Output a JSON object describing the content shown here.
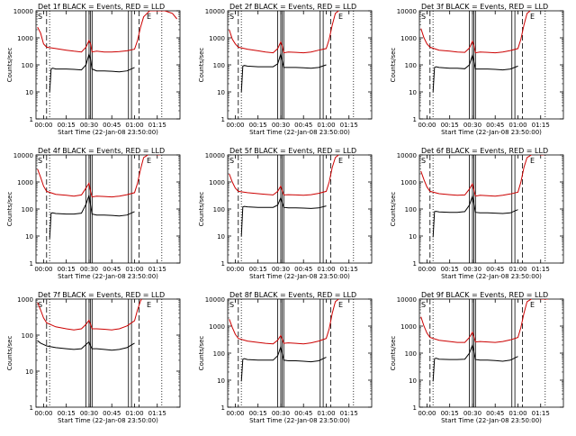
{
  "chart_data": [
    {
      "type": "line",
      "title": "Det 1f BLACK = Events, RED = LLD",
      "xlabel": "Start Time (22-Jan-08 23:50:00)",
      "ylabel": "Counts/sec",
      "yscale": "log",
      "ylim": [
        1,
        10000
      ],
      "xlim_minutes": [
        -5,
        90
      ],
      "x_tick_labels": [
        "00:00",
        "00:15",
        "00:30",
        "00:45",
        "01:00",
        "01:15"
      ],
      "y_tick_labels": [
        "1",
        "10",
        "100",
        "1000",
        "10000"
      ],
      "panel_markers": [
        "S",
        "E"
      ],
      "series": [
        {
          "color": "#cc0000",
          "x": [
            -4,
            -2,
            0,
            2,
            8,
            15,
            20,
            25,
            28,
            30,
            31,
            32,
            35,
            40,
            45,
            50,
            55,
            60,
            62,
            64,
            66,
            70,
            76,
            80,
            85,
            88
          ],
          "y": [
            2500,
            1500,
            600,
            450,
            400,
            350,
            320,
            300,
            450,
            800,
            600,
            300,
            320,
            300,
            300,
            310,
            330,
            380,
            800,
            2500,
            6000,
            10000,
            10000,
            10000,
            8000,
            5000
          ]
        },
        {
          "color": "#000000",
          "x": [
            4,
            5,
            6,
            8,
            15,
            20,
            25,
            28,
            30,
            31,
            32,
            35,
            40,
            45,
            50,
            55,
            60
          ],
          "y": [
            10,
            70,
            75,
            70,
            70,
            68,
            65,
            100,
            250,
            160,
            70,
            60,
            60,
            58,
            55,
            60,
            80
          ]
        }
      ]
    },
    {
      "type": "line",
      "title": "Det 2f BLACK = Events, RED = LLD",
      "xlabel": "Start Time (22-Jan-08 23:50:00)",
      "ylabel": "Counts/sec",
      "yscale": "log",
      "ylim": [
        1,
        10000
      ],
      "xlim_minutes": [
        -5,
        90
      ],
      "x_tick_labels": [
        "00:00",
        "00:15",
        "00:30",
        "00:45",
        "01:00",
        "01:15"
      ],
      "y_tick_labels": [
        "1",
        "10",
        "100",
        "1000",
        "10000"
      ],
      "panel_markers": [
        "S",
        "E"
      ],
      "series": [
        {
          "color": "#cc0000",
          "x": [
            -4,
            -2,
            0,
            2,
            8,
            15,
            20,
            25,
            28,
            30,
            31,
            32,
            35,
            40,
            45,
            50,
            55,
            60,
            62,
            64,
            66,
            70
          ],
          "y": [
            2000,
            900,
            600,
            450,
            380,
            330,
            300,
            280,
            400,
            700,
            500,
            280,
            300,
            290,
            280,
            300,
            350,
            400,
            900,
            3000,
            8000,
            12000
          ]
        },
        {
          "color": "#000000",
          "x": [
            4,
            5,
            6,
            8,
            15,
            20,
            25,
            28,
            30,
            31,
            32,
            35,
            40,
            45,
            50,
            55,
            60
          ],
          "y": [
            10,
            90,
            95,
            90,
            85,
            85,
            85,
            110,
            250,
            140,
            80,
            80,
            80,
            78,
            75,
            80,
            100
          ]
        }
      ]
    },
    {
      "type": "line",
      "title": "Det 3f BLACK = Events, RED = LLD",
      "xlabel": "Start Time (22-Jan-08 23:50:00)",
      "ylabel": "Counts/sec",
      "yscale": "log",
      "ylim": [
        1,
        10000
      ],
      "xlim_minutes": [
        -5,
        90
      ],
      "x_tick_labels": [
        "00:00",
        "00:15",
        "00:30",
        "00:45",
        "01:00",
        "01:15"
      ],
      "y_tick_labels": [
        "1",
        "10",
        "100",
        "1000",
        "10000"
      ],
      "panel_markers": [
        "S",
        "E"
      ],
      "series": [
        {
          "color": "#cc0000",
          "x": [
            -4,
            -2,
            0,
            2,
            8,
            15,
            20,
            25,
            28,
            30,
            31,
            32,
            35,
            40,
            45,
            50,
            55,
            60,
            62,
            64,
            66,
            70
          ],
          "y": [
            2200,
            1000,
            600,
            450,
            350,
            320,
            300,
            290,
            420,
            750,
            520,
            280,
            300,
            290,
            280,
            300,
            340,
            400,
            900,
            3000,
            8000,
            12000
          ]
        },
        {
          "color": "#000000",
          "x": [
            4,
            5,
            6,
            8,
            15,
            20,
            25,
            28,
            30,
            31,
            32,
            35,
            40,
            45,
            50,
            55,
            60
          ],
          "y": [
            10,
            80,
            85,
            80,
            75,
            75,
            72,
            100,
            230,
            130,
            70,
            70,
            70,
            68,
            65,
            70,
            90
          ]
        }
      ]
    },
    {
      "type": "line",
      "title": "Det 4f BLACK = Events, RED = LLD",
      "xlabel": "Start Time (22-Jan-08 23:50:00)",
      "ylabel": "Counts/sec",
      "yscale": "log",
      "ylim": [
        1,
        10000
      ],
      "xlim_minutes": [
        -5,
        90
      ],
      "x_tick_labels": [
        "00:00",
        "00:15",
        "00:30",
        "00:45",
        "01:00",
        "01:15"
      ],
      "y_tick_labels": [
        "1",
        "10",
        "100",
        "1000",
        "10000"
      ],
      "panel_markers": [
        "S",
        "E"
      ],
      "series": [
        {
          "color": "#cc0000",
          "x": [
            -4,
            -2,
            0,
            2,
            8,
            15,
            20,
            25,
            28,
            30,
            31,
            32,
            35,
            40,
            45,
            50,
            55,
            60,
            62,
            64,
            66,
            70,
            76,
            80
          ],
          "y": [
            3000,
            1500,
            700,
            450,
            350,
            320,
            300,
            330,
            600,
            900,
            450,
            280,
            300,
            290,
            280,
            300,
            340,
            400,
            900,
            3000,
            8000,
            11000,
            10000,
            11000
          ]
        },
        {
          "color": "#000000",
          "x": [
            4,
            5,
            6,
            8,
            15,
            20,
            25,
            28,
            30,
            31,
            32,
            35,
            40,
            45,
            50,
            55,
            60
          ],
          "y": [
            8,
            70,
            72,
            68,
            65,
            65,
            70,
            150,
            320,
            140,
            65,
            60,
            60,
            58,
            55,
            60,
            80
          ]
        }
      ]
    },
    {
      "type": "line",
      "title": "Det 5f BLACK = Events, RED = LLD",
      "xlabel": "Start Time (22-Jan-08 23:50:00)",
      "ylabel": "Counts/sec",
      "yscale": "log",
      "ylim": [
        1,
        10000
      ],
      "xlim_minutes": [
        -5,
        90
      ],
      "x_tick_labels": [
        "00:00",
        "00:15",
        "00:30",
        "00:45",
        "01:00",
        "01:15"
      ],
      "y_tick_labels": [
        "1",
        "10",
        "100",
        "1000",
        "10000"
      ],
      "panel_markers": [
        "S",
        "E"
      ],
      "series": [
        {
          "color": "#cc0000",
          "x": [
            -4,
            -2,
            0,
            2,
            8,
            15,
            20,
            25,
            28,
            30,
            31,
            32,
            35,
            40,
            45,
            50,
            55,
            60,
            62,
            64,
            66,
            70
          ],
          "y": [
            2000,
            1000,
            600,
            450,
            400,
            370,
            350,
            330,
            450,
            700,
            480,
            330,
            340,
            330,
            320,
            340,
            380,
            450,
            1000,
            3500,
            8000,
            12000
          ]
        },
        {
          "color": "#000000",
          "x": [
            4,
            5,
            6,
            8,
            15,
            20,
            25,
            28,
            30,
            31,
            32,
            35,
            40,
            45,
            50,
            55,
            60
          ],
          "y": [
            10,
            120,
            125,
            120,
            115,
            115,
            115,
            140,
            260,
            170,
            115,
            110,
            110,
            108,
            105,
            110,
            130
          ]
        }
      ]
    },
    {
      "type": "line",
      "title": "Det 6f BLACK = Events, RED = LLD",
      "xlabel": "Start Time (22-Jan-08 23:50:00)",
      "ylabel": "Counts/sec",
      "yscale": "log",
      "ylim": [
        1,
        10000
      ],
      "xlim_minutes": [
        -5,
        90
      ],
      "x_tick_labels": [
        "00:00",
        "00:15",
        "00:30",
        "00:45",
        "01:00",
        "01:15"
      ],
      "y_tick_labels": [
        "1",
        "10",
        "100",
        "1000",
        "10000"
      ],
      "panel_markers": [
        "S",
        "E"
      ],
      "series": [
        {
          "color": "#cc0000",
          "x": [
            -4,
            -2,
            0,
            2,
            8,
            15,
            20,
            25,
            28,
            30,
            31,
            32,
            35,
            40,
            45,
            50,
            55,
            60,
            62,
            64,
            66,
            70,
            76,
            80
          ],
          "y": [
            2500,
            1200,
            650,
            450,
            370,
            340,
            320,
            330,
            550,
            850,
            500,
            300,
            320,
            310,
            300,
            320,
            360,
            420,
            1000,
            3500,
            8000,
            11000,
            10000,
            11000
          ]
        },
        {
          "color": "#000000",
          "x": [
            4,
            5,
            6,
            8,
            15,
            20,
            25,
            28,
            30,
            31,
            32,
            35,
            40,
            45,
            50,
            55,
            60
          ],
          "y": [
            9,
            80,
            82,
            78,
            75,
            75,
            80,
            140,
            300,
            150,
            75,
            72,
            72,
            70,
            68,
            72,
            95
          ]
        }
      ]
    },
    {
      "type": "line",
      "title": "Det 7f BLACK = Events, RED = LLD",
      "xlabel": "Start Time (22-Jan-08 23:50:00)",
      "ylabel": "Counts/sec",
      "yscale": "log",
      "ylim": [
        1,
        1000
      ],
      "xlim_minutes": [
        -5,
        90
      ],
      "x_tick_labels": [
        "00:00",
        "00:15",
        "00:30",
        "00:45",
        "01:00",
        "01:15"
      ],
      "y_tick_labels": [
        "1",
        "10",
        "100",
        "1000"
      ],
      "panel_markers": [
        "S",
        "E"
      ],
      "series": [
        {
          "color": "#cc0000",
          "x": [
            -4,
            -2,
            0,
            2,
            8,
            15,
            20,
            25,
            28,
            30,
            31,
            32,
            35,
            40,
            45,
            50,
            55,
            60,
            62,
            64,
            66
          ],
          "y": [
            800,
            500,
            300,
            220,
            170,
            150,
            140,
            150,
            200,
            260,
            200,
            150,
            150,
            145,
            140,
            150,
            180,
            250,
            500,
            900,
            1200
          ]
        },
        {
          "color": "#000000",
          "x": [
            -4,
            -2,
            0,
            2,
            8,
            15,
            20,
            25,
            28,
            30,
            31,
            32,
            35,
            40,
            45,
            50,
            55,
            60
          ],
          "y": [
            70,
            60,
            55,
            50,
            45,
            42,
            40,
            42,
            55,
            65,
            50,
            42,
            42,
            40,
            38,
            40,
            45,
            60
          ]
        }
      ]
    },
    {
      "type": "line",
      "title": "Det 8f BLACK = Events, RED = LLD",
      "xlabel": "Start Time (22-Jan-08 23:50:00)",
      "ylabel": "Counts/sec",
      "yscale": "log",
      "ylim": [
        1,
        10000
      ],
      "xlim_minutes": [
        -5,
        90
      ],
      "x_tick_labels": [
        "00:00",
        "00:15",
        "00:30",
        "00:45",
        "01:00",
        "01:15"
      ],
      "y_tick_labels": [
        "1",
        "10",
        "100",
        "1000",
        "10000"
      ],
      "panel_markers": [
        "S",
        "E"
      ],
      "series": [
        {
          "color": "#cc0000",
          "x": [
            -4,
            -2,
            0,
            2,
            8,
            15,
            20,
            25,
            28,
            30,
            31,
            32,
            35,
            40,
            45,
            50,
            55,
            60,
            62,
            64,
            66,
            70
          ],
          "y": [
            1800,
            900,
            500,
            350,
            280,
            250,
            230,
            220,
            300,
            450,
            330,
            230,
            240,
            230,
            220,
            240,
            280,
            350,
            800,
            3000,
            8000,
            12000
          ]
        },
        {
          "color": "#000000",
          "x": [
            4,
            5,
            6,
            8,
            15,
            20,
            25,
            28,
            30,
            31,
            32,
            35,
            40,
            45,
            50,
            55,
            60
          ],
          "y": [
            9,
            60,
            62,
            58,
            55,
            55,
            55,
            80,
            170,
            95,
            55,
            52,
            52,
            50,
            48,
            52,
            70
          ]
        }
      ]
    },
    {
      "type": "line",
      "title": "Det 9f BLACK = Events, RED = LLD",
      "xlabel": "Start Time (22-Jan-08 23:50:00)",
      "ylabel": "Counts/sec",
      "yscale": "log",
      "ylim": [
        1,
        10000
      ],
      "xlim_minutes": [
        -5,
        90
      ],
      "x_tick_labels": [
        "00:00",
        "00:15",
        "00:30",
        "00:45",
        "01:00",
        "01:15"
      ],
      "y_tick_labels": [
        "1",
        "10",
        "100",
        "1000",
        "10000"
      ],
      "panel_markers": [
        "S",
        "E"
      ],
      "series": [
        {
          "color": "#cc0000",
          "x": [
            -4,
            -2,
            0,
            2,
            8,
            15,
            20,
            25,
            28,
            30,
            31,
            32,
            35,
            40,
            45,
            50,
            55,
            60,
            62,
            64,
            66,
            70,
            76,
            80
          ],
          "y": [
            2200,
            1000,
            550,
            380,
            300,
            270,
            250,
            250,
            380,
            600,
            400,
            260,
            270,
            260,
            250,
            270,
            310,
            380,
            900,
            3000,
            8000,
            11000,
            10000,
            10000
          ]
        },
        {
          "color": "#000000",
          "x": [
            4,
            5,
            6,
            8,
            15,
            20,
            25,
            28,
            30,
            31,
            32,
            35,
            40,
            45,
            50,
            55,
            60
          ],
          "y": [
            9,
            62,
            65,
            60,
            58,
            58,
            60,
            100,
            200,
            110,
            58,
            55,
            55,
            53,
            50,
            55,
            75
          ]
        }
      ]
    }
  ]
}
